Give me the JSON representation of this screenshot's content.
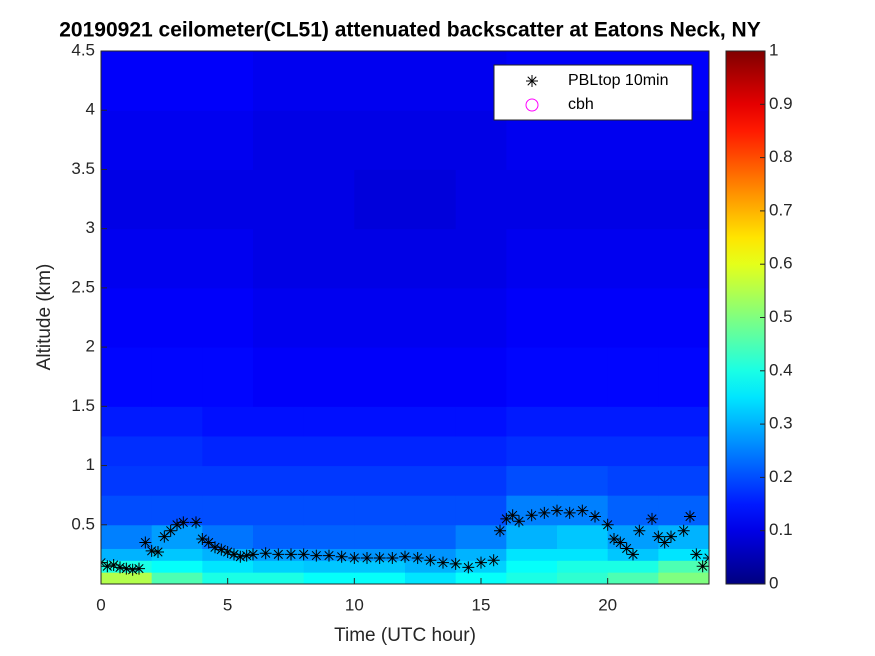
{
  "chart_data": {
    "type": "heatmap",
    "title": "20190921 ceilometer(CL51) attenuated backscatter at Eatons Neck, NY",
    "xlabel": "Time (UTC hour)",
    "ylabel": "Altitude (km)",
    "xlim": [
      0,
      24
    ],
    "ylim": [
      0,
      4.5
    ],
    "xticks": [
      0,
      5,
      10,
      15,
      20
    ],
    "yticks": [
      0.5,
      1,
      1.5,
      2,
      2.5,
      3,
      3.5,
      4,
      4.5
    ],
    "colormap": "jet",
    "clim": [
      0,
      1
    ],
    "cticks": [
      0,
      0.1,
      0.2,
      0.3,
      0.4,
      0.5,
      0.6,
      0.7,
      0.8,
      0.9,
      1
    ],
    "x_edges": [
      0,
      2,
      4,
      6,
      8,
      10,
      12,
      14,
      16,
      18,
      20,
      22,
      24
    ],
    "y_edges": [
      0,
      0.1,
      0.2,
      0.3,
      0.5,
      0.75,
      1,
      1.25,
      1.5,
      2,
      2.5,
      3,
      3.5,
      4,
      4.5
    ],
    "values": [
      [
        0.55,
        0.45,
        0.4,
        0.4,
        0.38,
        0.38,
        0.35,
        0.38,
        0.4,
        0.42,
        0.45,
        0.5
      ],
      [
        0.4,
        0.38,
        0.35,
        0.33,
        0.32,
        0.32,
        0.3,
        0.33,
        0.38,
        0.4,
        0.4,
        0.45
      ],
      [
        0.3,
        0.32,
        0.3,
        0.28,
        0.27,
        0.27,
        0.27,
        0.3,
        0.35,
        0.35,
        0.32,
        0.35
      ],
      [
        0.25,
        0.28,
        0.24,
        0.22,
        0.22,
        0.22,
        0.22,
        0.25,
        0.3,
        0.32,
        0.28,
        0.3
      ],
      [
        0.2,
        0.2,
        0.2,
        0.2,
        0.2,
        0.2,
        0.2,
        0.2,
        0.25,
        0.25,
        0.22,
        0.22
      ],
      [
        0.18,
        0.18,
        0.18,
        0.18,
        0.18,
        0.18,
        0.18,
        0.18,
        0.2,
        0.2,
        0.19,
        0.19
      ],
      [
        0.17,
        0.17,
        0.16,
        0.16,
        0.16,
        0.16,
        0.16,
        0.16,
        0.17,
        0.17,
        0.17,
        0.17
      ],
      [
        0.15,
        0.15,
        0.14,
        0.14,
        0.14,
        0.14,
        0.14,
        0.14,
        0.15,
        0.15,
        0.15,
        0.15
      ],
      [
        0.13,
        0.13,
        0.13,
        0.12,
        0.12,
        0.12,
        0.12,
        0.12,
        0.13,
        0.13,
        0.13,
        0.13
      ],
      [
        0.12,
        0.12,
        0.12,
        0.11,
        0.11,
        0.11,
        0.11,
        0.11,
        0.12,
        0.12,
        0.12,
        0.12
      ],
      [
        0.11,
        0.11,
        0.11,
        0.1,
        0.1,
        0.1,
        0.1,
        0.1,
        0.11,
        0.11,
        0.11,
        0.11
      ],
      [
        0.1,
        0.1,
        0.1,
        0.1,
        0.1,
        0.09,
        0.09,
        0.1,
        0.1,
        0.1,
        0.1,
        0.1
      ],
      [
        0.11,
        0.11,
        0.11,
        0.1,
        0.1,
        0.1,
        0.1,
        0.1,
        0.11,
        0.11,
        0.11,
        0.11
      ],
      [
        0.12,
        0.12,
        0.12,
        0.11,
        0.11,
        0.11,
        0.11,
        0.11,
        0.12,
        0.12,
        0.12,
        0.12
      ]
    ],
    "legend": "top-right",
    "series": [
      {
        "name": "PBLtop 10min",
        "color": "#000000",
        "marker": "asterisk",
        "x": [
          0,
          0.25,
          0.5,
          0.75,
          1,
          1.25,
          1.5,
          1.75,
          2,
          2.25,
          2.5,
          2.75,
          3,
          3.25,
          3.75,
          4,
          4.25,
          4.5,
          4.75,
          5,
          5.25,
          5.5,
          5.75,
          6,
          6.5,
          7,
          7.5,
          8,
          8.5,
          9,
          9.5,
          10,
          10.5,
          11,
          11.5,
          12,
          12.5,
          13,
          13.5,
          14,
          14.5,
          15,
          15.5,
          15.75,
          16,
          16.25,
          16.5,
          17,
          17.5,
          18,
          18.5,
          19,
          19.5,
          20,
          20.25,
          20.5,
          20.75,
          21,
          21.25,
          21.75,
          22,
          22.25,
          22.5,
          23,
          23.25,
          23.5,
          23.75,
          24
        ],
        "y": [
          0.18,
          0.15,
          0.16,
          0.14,
          0.13,
          0.12,
          0.13,
          0.35,
          0.28,
          0.27,
          0.4,
          0.45,
          0.5,
          0.52,
          0.52,
          0.38,
          0.35,
          0.31,
          0.29,
          0.27,
          0.25,
          0.23,
          0.24,
          0.25,
          0.26,
          0.25,
          0.25,
          0.25,
          0.24,
          0.24,
          0.23,
          0.22,
          0.22,
          0.22,
          0.22,
          0.23,
          0.22,
          0.2,
          0.18,
          0.17,
          0.14,
          0.18,
          0.2,
          0.45,
          0.55,
          0.58,
          0.53,
          0.58,
          0.6,
          0.62,
          0.6,
          0.62,
          0.57,
          0.5,
          0.38,
          0.35,
          0.3,
          0.25,
          0.45,
          0.55,
          0.4,
          0.35,
          0.4,
          0.45,
          0.57,
          0.25,
          0.15,
          0.22
        ]
      },
      {
        "name": "cbh",
        "color": "#ff00ff",
        "marker": "circle",
        "x": [],
        "y": []
      }
    ]
  }
}
